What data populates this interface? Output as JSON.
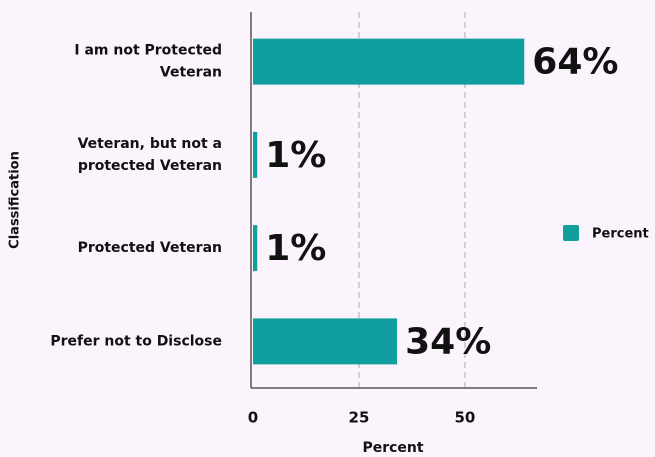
{
  "chart_data": {
    "type": "bar",
    "orientation": "horizontal",
    "x_label": "Percent",
    "y_label": "Classification",
    "categories": [
      "I am not Protected Veteran",
      "Veteran, but not a protected Veteran",
      "Protected Veteran",
      "Prefer not to Disclose"
    ],
    "series": [
      {
        "name": "Percent",
        "color": "#119e9f",
        "values": [
          64,
          1,
          1,
          34
        ],
        "value_labels": [
          "64%",
          "1%",
          "1%",
          "34%"
        ]
      }
    ],
    "xlim": [
      0,
      67
    ],
    "xticks": [
      0,
      25,
      50
    ],
    "grid": true,
    "legend": "right"
  }
}
